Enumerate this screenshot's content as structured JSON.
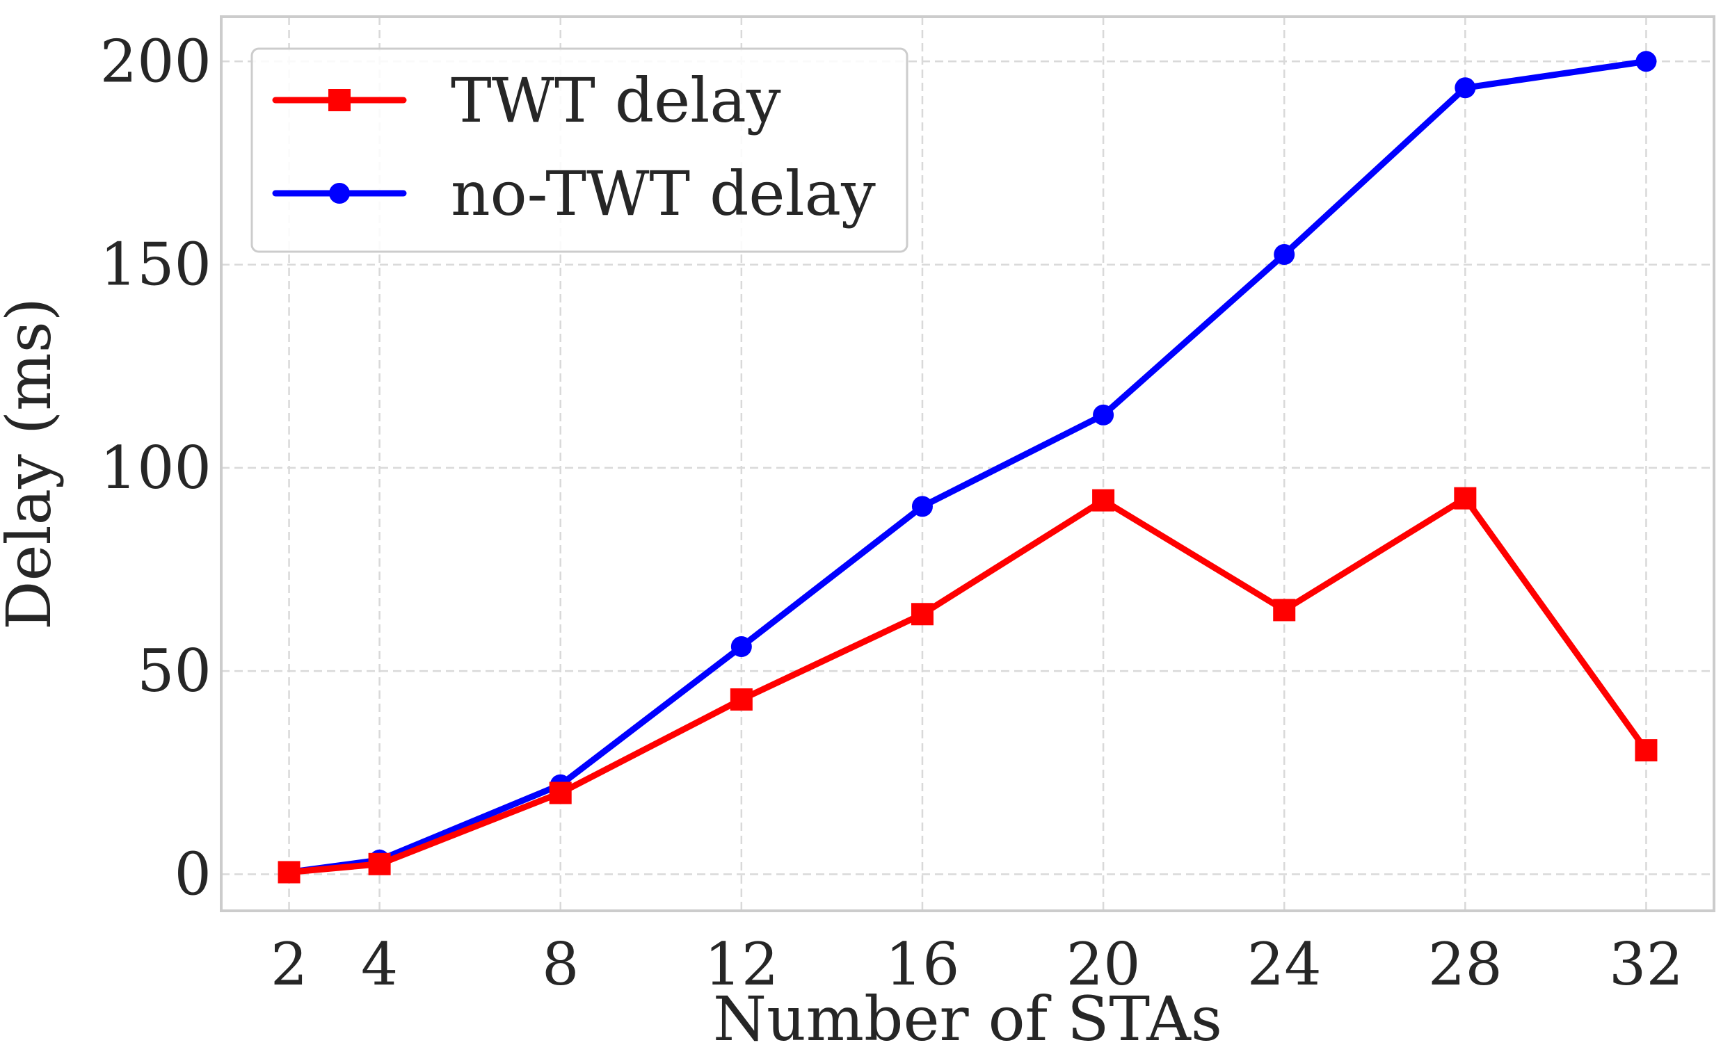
{
  "chart_data": {
    "type": "line",
    "title": "",
    "xlabel": "Number of STAs",
    "ylabel": "Delay (ms)",
    "x": [
      2,
      4,
      8,
      12,
      16,
      20,
      24,
      28,
      32
    ],
    "x_tick_labels": [
      "2",
      "4",
      "8",
      "12",
      "16",
      "20",
      "24",
      "28",
      "32"
    ],
    "y_ticks": [
      0,
      50,
      100,
      150,
      200
    ],
    "y_tick_labels": [
      "0",
      "50",
      "100",
      "150",
      "200"
    ],
    "xlim": [
      0.5,
      33.5
    ],
    "ylim": [
      -9,
      211
    ],
    "grid": true,
    "legend_position": "upper left",
    "series": [
      {
        "name": "TWT delay",
        "color": "#ff0000",
        "marker": "square",
        "values": [
          0.5,
          2.5,
          20,
          43,
          64,
          92,
          65,
          92.5,
          30.5
        ]
      },
      {
        "name": "no-TWT delay",
        "color": "#0000ff",
        "marker": "circle",
        "values": [
          0.5,
          3.5,
          22,
          56,
          90.5,
          113,
          152.5,
          193.5,
          200
        ]
      }
    ]
  }
}
